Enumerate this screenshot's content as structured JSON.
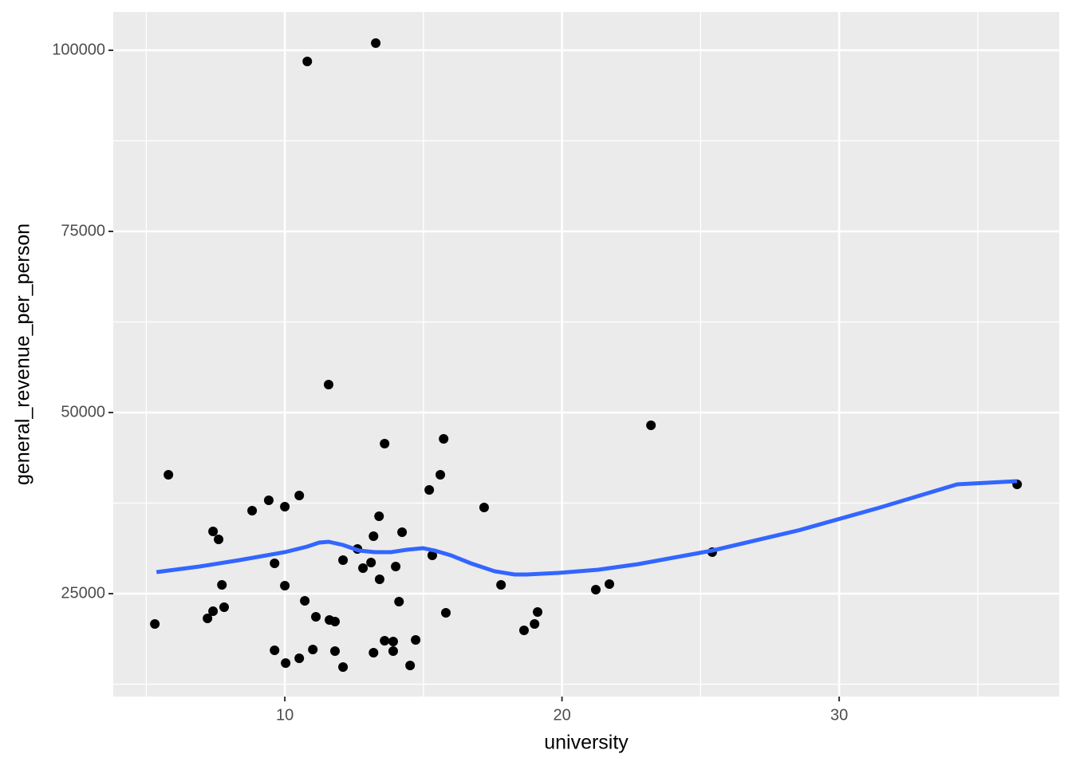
{
  "chart_data": {
    "type": "scatter",
    "x_label": "university",
    "y_label": "general_revenue_per_person",
    "xlim": [
      3.81,
      37.94
    ],
    "ylim": [
      10793,
      105286
    ],
    "xticks": [
      10,
      20,
      30
    ],
    "yticks": [
      25000,
      50000,
      75000,
      100000
    ],
    "grid": true,
    "color": "#000000",
    "x": [
      5.31,
      5.8,
      7.21,
      7.41,
      7.41,
      7.61,
      7.73,
      7.81,
      8.82,
      9.42,
      9.63,
      9.63,
      10.0,
      10.0,
      10.03,
      10.52,
      10.52,
      10.72,
      10.81,
      11.01,
      11.12,
      11.58,
      11.61,
      11.81,
      11.81,
      12.1,
      12.1,
      12.62,
      12.82,
      13.11,
      13.2,
      13.2,
      13.28,
      13.4,
      13.42,
      13.6,
      13.6,
      13.91,
      13.91,
      14.0,
      14.12,
      14.23,
      14.52,
      14.72,
      15.21,
      15.32,
      15.61,
      15.73,
      15.81,
      17.19,
      17.8,
      18.63,
      19.01,
      19.12,
      21.22,
      21.71,
      23.21,
      25.42,
      36.42
    ],
    "y": [
      20817,
      41411,
      21587,
      33592,
      22579,
      32490,
      26213,
      23129,
      36455,
      37887,
      29186,
      17182,
      37006,
      26103,
      15420,
      38547,
      16081,
      24010,
      98458,
      17292,
      21808,
      53856,
      21367,
      21147,
      17072,
      29627,
      14870,
      31169,
      28526,
      29297,
      32931,
      16852,
      100991,
      35684,
      26984,
      45706,
      18504,
      18394,
      17072,
      28746,
      23900,
      33481,
      15090,
      18614,
      39318,
      30288,
      41411,
      46367,
      22358,
      36896,
      26213,
      19935,
      20817,
      22468,
      25552,
      26323,
      48239,
      30728,
      40089
    ],
    "smooth": {
      "color": "#3366ff",
      "x": [
        5.37,
        6.92,
        8.36,
        10.0,
        10.81,
        11.24,
        11.58,
        12.1,
        12.68,
        13.25,
        13.83,
        14.4,
        14.98,
        15.41,
        15.99,
        16.71,
        17.57,
        18.29,
        18.72,
        19.87,
        21.31,
        22.75,
        25.42,
        28.5,
        31.38,
        34.26,
        36.42
      ],
      "y": [
        27975,
        28746,
        29627,
        30728,
        31499,
        32050,
        32160,
        31719,
        30948,
        30728,
        30728,
        31059,
        31279,
        30948,
        30288,
        29186,
        28085,
        27645,
        27645,
        27865,
        28305,
        29076,
        30948,
        33702,
        36785,
        40089,
        40530
      ]
    }
  }
}
